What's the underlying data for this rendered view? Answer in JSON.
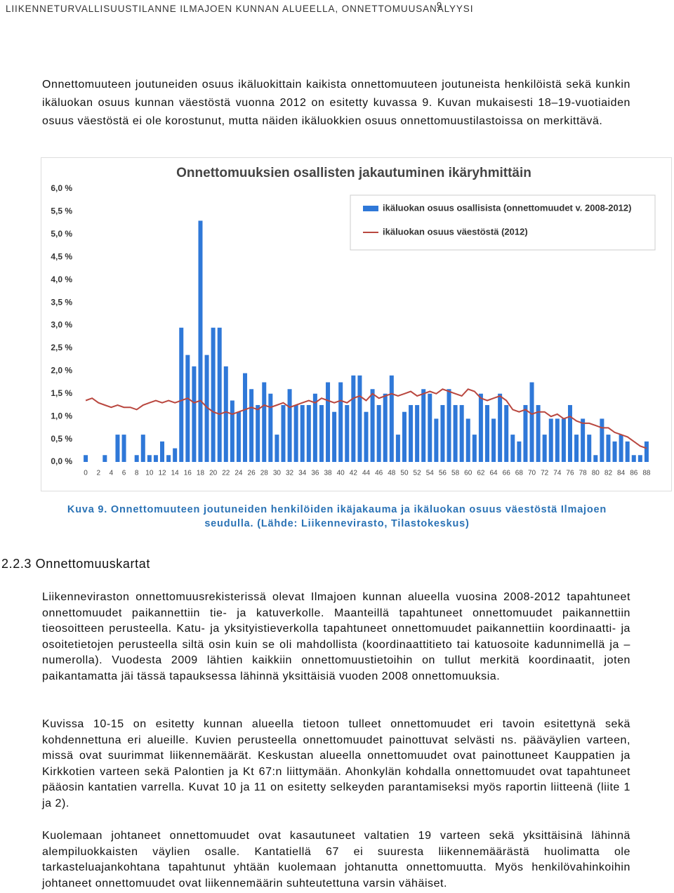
{
  "header": {
    "running_title": "LIIKENNETURVALLISUUSTILANNE ILMAJOEN KUNNAN ALUEELLA, ONNETTOMUUSANALYYSI",
    "page_number": "9"
  },
  "intro": "Onnettomuuteen joutuneiden osuus ikäluokittain kaikista onnettomuuteen joutuneista henkilöistä sekä kunkin ikäluokan osuus kunnan väestöstä vuonna 2012 on esitetty kuvassa 9. Kuvan mukaisesti 18–19-vuotiaiden osuus väestöstä ei ole korostunut, mutta näiden ikäluokkien osuus onnettomuustilastoissa on merkittävä.",
  "chart_data": {
    "type": "combo",
    "title": "Onnettomuuksien osallisten jakautuminen ikäryhmittäin",
    "x": [
      0,
      1,
      2,
      3,
      4,
      5,
      6,
      7,
      8,
      9,
      10,
      11,
      12,
      13,
      14,
      15,
      16,
      17,
      18,
      19,
      20,
      21,
      22,
      23,
      24,
      25,
      26,
      27,
      28,
      29,
      30,
      31,
      32,
      33,
      34,
      35,
      36,
      37,
      38,
      39,
      40,
      41,
      42,
      43,
      44,
      45,
      46,
      47,
      48,
      49,
      50,
      51,
      52,
      53,
      54,
      55,
      56,
      57,
      58,
      59,
      60,
      61,
      62,
      63,
      64,
      65,
      66,
      67,
      68,
      69,
      70,
      71,
      72,
      73,
      74,
      75,
      76,
      77,
      78,
      79,
      80,
      81,
      82,
      83,
      84,
      85,
      86,
      87,
      88
    ],
    "series": [
      {
        "name": "ikäluokan osuus osallisista (onnettomuudet v. 2008-2012)",
        "type": "bar",
        "color": "#2f78d8",
        "values": [
          0.15,
          0,
          0,
          0.15,
          0,
          0.6,
          0.6,
          0,
          0.15,
          0.6,
          0.15,
          0.15,
          0.45,
          0.15,
          0.3,
          2.95,
          2.35,
          2.1,
          5.3,
          2.35,
          2.95,
          2.95,
          2.1,
          1.35,
          1.1,
          1.95,
          1.6,
          1.25,
          1.75,
          1.5,
          0.6,
          1.25,
          1.6,
          1.25,
          1.25,
          1.25,
          1.5,
          1.25,
          1.75,
          1.1,
          1.75,
          1.25,
          1.9,
          1.9,
          1.1,
          1.6,
          1.25,
          1.5,
          1.9,
          0.6,
          1.1,
          1.25,
          1.25,
          1.6,
          1.5,
          0.95,
          1.25,
          1.6,
          1.25,
          1.25,
          0.95,
          0.6,
          1.5,
          1.25,
          0.95,
          1.5,
          1.25,
          0.6,
          0.45,
          1.25,
          1.75,
          1.25,
          0.6,
          0.95,
          0.95,
          0.95,
          1.25,
          0.6,
          0.95,
          0.6,
          0.15,
          0.95,
          0.6,
          0.45,
          0.6,
          0.45,
          0.15,
          0.15,
          0.45
        ]
      },
      {
        "name": "ikäluokan osuus väestöstä (2012)",
        "type": "line",
        "color": "#b9473f",
        "values": [
          1.35,
          1.4,
          1.3,
          1.25,
          1.2,
          1.25,
          1.2,
          1.2,
          1.15,
          1.25,
          1.3,
          1.35,
          1.3,
          1.35,
          1.3,
          1.35,
          1.4,
          1.3,
          1.35,
          1.2,
          1.1,
          1.05,
          1.1,
          1.05,
          1.1,
          1.15,
          1.2,
          1.15,
          1.25,
          1.2,
          1.25,
          1.3,
          1.2,
          1.25,
          1.3,
          1.35,
          1.3,
          1.4,
          1.35,
          1.3,
          1.35,
          1.3,
          1.4,
          1.45,
          1.35,
          1.5,
          1.4,
          1.45,
          1.5,
          1.45,
          1.5,
          1.55,
          1.45,
          1.5,
          1.55,
          1.5,
          1.6,
          1.55,
          1.5,
          1.45,
          1.6,
          1.55,
          1.4,
          1.35,
          1.4,
          1.45,
          1.35,
          1.15,
          1.1,
          1.15,
          1.05,
          1.1,
          1.1,
          1.0,
          1.05,
          0.95,
          1.0,
          0.9,
          0.85,
          0.85,
          0.8,
          0.75,
          0.75,
          0.65,
          0.6,
          0.55,
          0.45,
          0.35,
          0.3
        ]
      }
    ],
    "xlim": [
      -1,
      89
    ],
    "xticks": [
      0,
      2,
      4,
      6,
      8,
      10,
      12,
      14,
      16,
      18,
      20,
      22,
      24,
      26,
      28,
      30,
      32,
      34,
      36,
      38,
      40,
      42,
      44,
      46,
      48,
      50,
      52,
      54,
      56,
      58,
      60,
      62,
      64,
      66,
      68,
      70,
      72,
      74,
      76,
      78,
      80,
      82,
      84,
      86,
      88
    ],
    "ylim": [
      0,
      6
    ],
    "yticks": [
      {
        "value": 0,
        "label": "0,0 %"
      },
      {
        "value": 0.5,
        "label": "0,5 %"
      },
      {
        "value": 1,
        "label": "1,0 %"
      },
      {
        "value": 1.5,
        "label": "1,5 %"
      },
      {
        "value": 2,
        "label": "2,0 %"
      },
      {
        "value": 2.5,
        "label": "2,5 %"
      },
      {
        "value": 3,
        "label": "3,0 %"
      },
      {
        "value": 3.5,
        "label": "3,5 %"
      },
      {
        "value": 4,
        "label": "4,0 %"
      },
      {
        "value": 4.5,
        "label": "4,5 %"
      },
      {
        "value": 5,
        "label": "5,0 %"
      },
      {
        "value": 5.5,
        "label": "5,5 %"
      },
      {
        "value": 6,
        "label": "6,0 %"
      }
    ],
    "legend": "upper right",
    "grid": false
  },
  "figure_caption": "Kuva 9. Onnettomuuteen joutuneiden henkilöiden ikäjakauma ja ikäluokan osuus väestöstä Ilmajoen seudulla. (Lähde: Liikennevirasto, Tilastokeskus)",
  "section_heading": "2.2.3 Onnettomuuskartat",
  "paragraphs": [
    "Liikenneviraston onnettomuusrekisterissä olevat Ilmajoen kunnan alueella vuosina 2008-2012 tapahtuneet onnettomuudet paikannettiin tie- ja katuverkolle. Maanteillä tapahtuneet onnettomuudet paikannettiin tieosoitteen perusteella. Katu- ja yksityistieverkolla tapahtuneet onnettomuudet paikannettiin koordinaatti- ja osoitetietojen perusteella siltä osin kuin se oli mahdollista (koordinaattitieto tai katuosoite kadunnimellä ja –numerolla). Vuodesta 2009 lähtien kaikkiin onnettomuustietoihin on tullut merkitä koordinaatit, joten paikantamatta jäi tässä tapauksessa lähinnä yksittäisiä vuoden 2008 onnettomuuksia.",
    "Kuvissa 10-15 on esitetty kunnan alueella tietoon tulleet onnettomuudet eri tavoin esitettynä sekä kohdennettuna eri alueille. Kuvien perusteella onnettomuudet painottuvat selvästi ns. pääväylien varteen, missä ovat suurimmat liikennemäärät. Keskustan alueella onnettomuudet ovat painottuneet Kauppatien ja Kirkkotien varteen sekä Palontien ja Kt 67:n liittymään. Ahonkylän kohdalla onnettomuudet ovat tapahtuneet pääosin kantatien varrella. Kuvat 10 ja 11 on esitetty selkeyden parantamiseksi myös raportin liitteenä (liite 1 ja 2).",
    "Kuolemaan johtaneet onnettomuudet ovat kasautuneet valtatien 19 varteen sekä yksittäisinä lähinnä alempiluokkaisten väylien osalle. Kantatiellä 67 ei suuresta liikennemäärästä huolimatta ole tarkasteluajankohtana tapahtunut yhtään kuolemaan johtanutta onnettomuutta. Myös henkilövahinkoihin johtaneet onnettomuudet ovat liikennemäärin suhteutettuna varsin vähäiset."
  ]
}
